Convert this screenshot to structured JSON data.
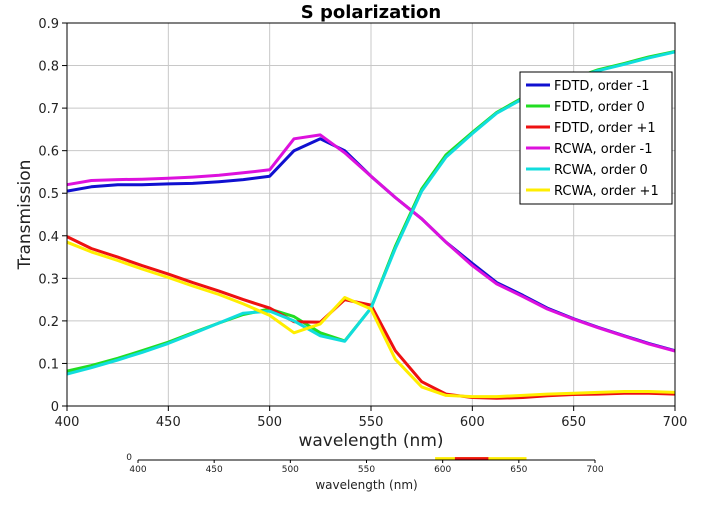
{
  "chart_data": [
    {
      "type": "line",
      "title": "S polarization",
      "xlabel": "wavelength (nm)",
      "ylabel": "Transmission",
      "xlim": [
        400,
        700
      ],
      "ylim": [
        0,
        0.9
      ],
      "x_ticks": [
        400,
        450,
        500,
        550,
        600,
        650,
        700
      ],
      "x_tick_labels": [
        "400",
        "450",
        "500",
        "550",
        "600",
        "650",
        "700"
      ],
      "y_ticks": [
        0,
        0.1,
        0.2,
        0.3,
        0.4,
        0.5,
        0.6,
        0.7,
        0.8,
        0.9
      ],
      "y_tick_labels": [
        "0",
        "0.1",
        "0.2",
        "0.3",
        "0.4",
        "0.5",
        "0.6",
        "0.7",
        "0.8",
        "0.9"
      ],
      "grid": true,
      "legend_position": "top-right",
      "series": [
        {
          "name": "FDTD, order -1",
          "color": "#1010d0",
          "x": [
            400,
            412,
            425,
            437,
            450,
            462,
            475,
            487,
            500,
            512,
            525,
            537,
            550,
            562,
            575,
            587,
            600,
            612,
            625,
            637,
            650,
            662,
            675,
            687,
            700
          ],
          "y": [
            0.505,
            0.515,
            0.52,
            0.52,
            0.522,
            0.523,
            0.527,
            0.532,
            0.54,
            0.6,
            0.628,
            0.6,
            0.54,
            0.49,
            0.44,
            0.385,
            0.335,
            0.29,
            0.26,
            0.23,
            0.205,
            0.185,
            0.165,
            0.147,
            0.13
          ]
        },
        {
          "name": "FDTD, order 0",
          "color": "#22dd22",
          "x": [
            400,
            412,
            425,
            437,
            450,
            462,
            475,
            487,
            500,
            512,
            525,
            537,
            550,
            562,
            575,
            587,
            600,
            612,
            625,
            637,
            650,
            662,
            675,
            687,
            700
          ],
          "y": [
            0.082,
            0.095,
            0.112,
            0.13,
            0.15,
            0.172,
            0.195,
            0.215,
            0.228,
            0.21,
            0.172,
            0.153,
            0.23,
            0.375,
            0.51,
            0.59,
            0.643,
            0.69,
            0.725,
            0.752,
            0.77,
            0.79,
            0.805,
            0.82,
            0.833
          ]
        },
        {
          "name": "FDTD, order +1",
          "color": "#ee1111",
          "x": [
            400,
            412,
            425,
            437,
            450,
            462,
            475,
            487,
            500,
            512,
            525,
            537,
            550,
            562,
            575,
            587,
            600,
            612,
            625,
            637,
            650,
            662,
            675,
            687,
            700
          ],
          "y": [
            0.398,
            0.37,
            0.35,
            0.33,
            0.31,
            0.29,
            0.27,
            0.25,
            0.23,
            0.198,
            0.197,
            0.25,
            0.237,
            0.13,
            0.057,
            0.028,
            0.02,
            0.018,
            0.02,
            0.024,
            0.027,
            0.028,
            0.03,
            0.03,
            0.028
          ]
        },
        {
          "name": "RCWA, order -1",
          "color": "#dd11dd",
          "x": [
            400,
            412,
            425,
            437,
            450,
            462,
            475,
            487,
            500,
            512,
            525,
            537,
            550,
            562,
            575,
            587,
            600,
            612,
            625,
            637,
            650,
            662,
            675,
            687,
            700
          ],
          "y": [
            0.52,
            0.53,
            0.532,
            0.533,
            0.535,
            0.538,
            0.542,
            0.548,
            0.555,
            0.628,
            0.637,
            0.595,
            0.54,
            0.49,
            0.44,
            0.385,
            0.33,
            0.287,
            0.257,
            0.228,
            0.204,
            0.184,
            0.164,
            0.146,
            0.129
          ]
        },
        {
          "name": "RCWA, order 0",
          "color": "#11dddd",
          "x": [
            400,
            412,
            425,
            437,
            450,
            462,
            475,
            487,
            500,
            512,
            525,
            537,
            550,
            562,
            575,
            587,
            600,
            612,
            625,
            637,
            650,
            662,
            675,
            687,
            700
          ],
          "y": [
            0.075,
            0.09,
            0.108,
            0.126,
            0.147,
            0.17,
            0.195,
            0.218,
            0.223,
            0.2,
            0.165,
            0.152,
            0.23,
            0.37,
            0.505,
            0.585,
            0.64,
            0.688,
            0.722,
            0.75,
            0.77,
            0.788,
            0.803,
            0.818,
            0.832
          ]
        },
        {
          "name": "RCWA, order +1",
          "color": "#ffee00",
          "x": [
            400,
            412,
            425,
            437,
            450,
            462,
            475,
            487,
            500,
            512,
            525,
            537,
            550,
            562,
            575,
            587,
            600,
            612,
            625,
            637,
            650,
            662,
            675,
            687,
            700
          ],
          "y": [
            0.385,
            0.362,
            0.342,
            0.322,
            0.302,
            0.282,
            0.262,
            0.24,
            0.213,
            0.172,
            0.193,
            0.255,
            0.228,
            0.11,
            0.045,
            0.025,
            0.022,
            0.022,
            0.025,
            0.028,
            0.03,
            0.032,
            0.034,
            0.034,
            0.032
          ]
        }
      ]
    },
    {
      "type": "line",
      "title": "",
      "xlabel": "wavelength (nm)",
      "xlim": [
        400,
        700
      ],
      "x_ticks": [
        400,
        450,
        500,
        550,
        600,
        650,
        700
      ],
      "x_tick_labels": [
        "400",
        "450",
        "500",
        "550",
        "600",
        "650",
        "700"
      ],
      "y_tick_labels": [
        "0"
      ],
      "grid": false,
      "series": [
        {
          "color": "#ffee00",
          "x": [
            595,
            610,
            625,
            640,
            655
          ],
          "y": [
            0.02,
            0.02,
            0.02,
            0.02,
            0.02
          ]
        },
        {
          "color": "#ee1111",
          "x": [
            608,
            614,
            622,
            630
          ],
          "y": [
            0.02,
            0.02,
            0.02,
            0.02
          ]
        }
      ]
    }
  ]
}
